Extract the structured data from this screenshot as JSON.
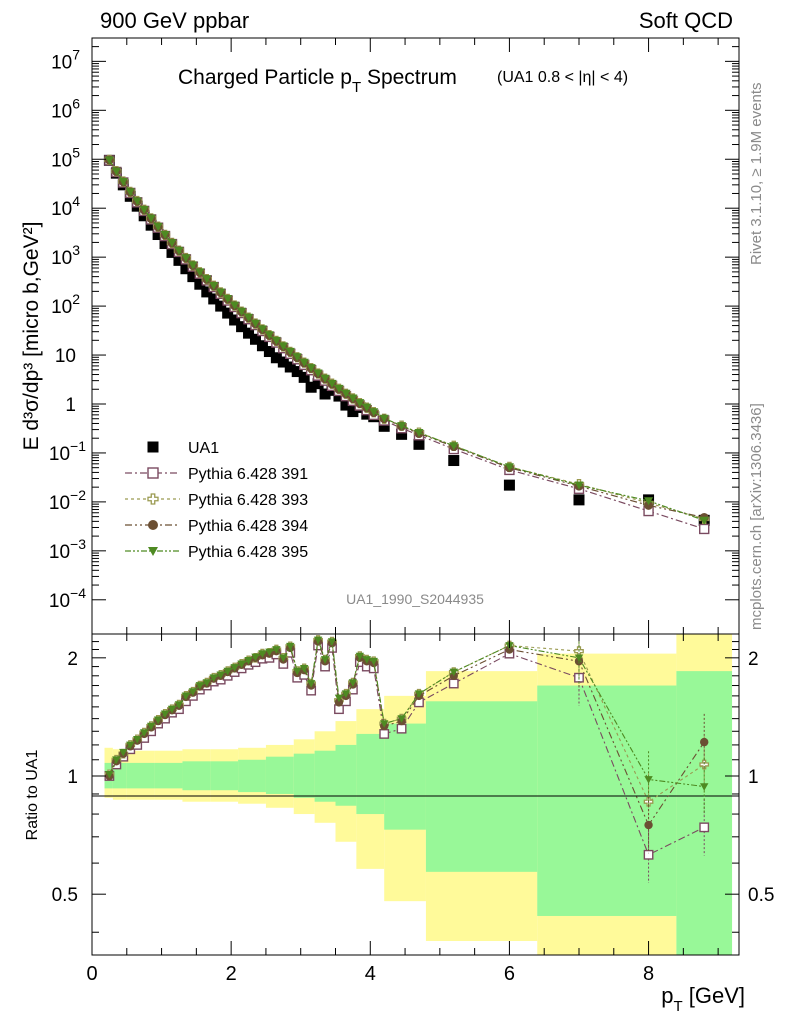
{
  "header": {
    "left": "900 GeV ppbar",
    "right": "Soft QCD"
  },
  "side": {
    "rivet": "Rivet 3.1.10, ≥ 1.9M events",
    "source": "mcplots.cern.ch [arXiv:1306.3436]"
  },
  "chart_data": {
    "type": "scatter",
    "title": {
      "main": "Charged Particle p",
      "main_sub": "T",
      "main_tail": " Spectrum",
      "note": "(UA1 0.8 < |η| < 4)"
    },
    "analysis": "UA1_1990_S2044935",
    "xlabel": {
      "main": "p",
      "sub": "T",
      "tail": " [GeV]"
    },
    "ylabel": "E d³σ/dp³ [micro b,GeV²]",
    "ratio_ylabel": "Ratio to UA1",
    "xlim": [
      0,
      9.3
    ],
    "ylim": [
      2e-05,
      30000000.0
    ],
    "ylog": true,
    "ratio_ylim": [
      0.35,
      2.3
    ],
    "ratio_ylog": true,
    "legend_position": "bottom-left",
    "x_ticks": [
      "0",
      "2",
      "4",
      "6",
      "8"
    ],
    "y_ticks": [
      {
        "v": 10000000.0,
        "base": "10",
        "exp": "7"
      },
      {
        "v": 1000000.0,
        "base": "10",
        "exp": "6"
      },
      {
        "v": 100000.0,
        "base": "10",
        "exp": "5"
      },
      {
        "v": 10000.0,
        "base": "10",
        "exp": "4"
      },
      {
        "v": 1000.0,
        "base": "10",
        "exp": "3"
      },
      {
        "v": 100,
        "base": "10",
        "exp": "2"
      },
      {
        "v": 10,
        "base": "10",
        "exp": ""
      },
      {
        "v": 1,
        "base": "1",
        "exp": ""
      },
      {
        "v": 0.1,
        "base": "10",
        "exp": "−1"
      },
      {
        "v": 0.01,
        "base": "10",
        "exp": "−2"
      },
      {
        "v": 0.001,
        "base": "10",
        "exp": "−3"
      },
      {
        "v": 0.0001,
        "base": "10",
        "exp": "−4"
      }
    ],
    "ratio_ticks": [
      "2",
      "1",
      "0.5"
    ],
    "x": [
      0.25,
      0.35,
      0.45,
      0.55,
      0.65,
      0.75,
      0.85,
      0.95,
      1.05,
      1.15,
      1.25,
      1.35,
      1.45,
      1.55,
      1.65,
      1.75,
      1.85,
      1.95,
      2.05,
      2.15,
      2.25,
      2.35,
      2.45,
      2.55,
      2.65,
      2.75,
      2.85,
      2.95,
      3.05,
      3.15,
      3.25,
      3.35,
      3.45,
      3.55,
      3.65,
      3.75,
      3.85,
      3.95,
      4.05,
      4.2,
      4.45,
      4.7,
      5.2,
      6.0,
      7.0,
      8.0,
      8.8
    ],
    "series": [
      {
        "name": "UA1",
        "marker": "filled-square",
        "color": "#000000",
        "values": [
          95000,
          52000,
          30000,
          17500,
          11000,
          7000,
          4500,
          2900,
          1900,
          1250,
          860,
          580,
          400,
          280,
          195,
          140,
          100,
          72,
          52,
          38,
          28,
          21,
          15.5,
          11.8,
          8.8,
          7.2,
          5.7,
          4.6,
          3.5,
          2.2,
          2.6,
          1.6,
          1.9,
          1.45,
          0.95,
          0.7,
          0.85,
          0.62,
          0.55,
          0.35,
          0.24,
          0.15,
          0.07,
          0.022,
          0.011,
          0.011,
          0.0042
        ]
      },
      {
        "name": "Pythia 6.428 391",
        "marker": "open-square",
        "color": "#7a4a60",
        "values": [
          95000,
          55000,
          33500,
          20500,
          13200,
          8800,
          5900,
          4000,
          2700,
          1850,
          1280,
          900,
          640,
          460,
          335,
          245,
          178,
          130,
          96,
          72,
          54,
          41,
          31,
          23.5,
          18,
          13.8,
          10.6,
          8.2,
          6.3,
          4.9,
          3.8,
          3.0,
          2.35,
          1.85,
          1.45,
          1.16,
          0.93,
          0.75,
          0.6,
          0.46,
          0.32,
          0.23,
          0.12,
          0.045,
          0.0185,
          0.0065,
          0.0028
        ],
        "ratio": [
          1.0,
          1.07,
          1.12,
          1.17,
          1.2,
          1.25,
          1.3,
          1.36,
          1.4,
          1.45,
          1.48,
          1.55,
          1.6,
          1.66,
          1.7,
          1.74,
          1.76,
          1.8,
          1.84,
          1.88,
          1.92,
          1.95,
          1.99,
          2.0,
          2.04,
          1.93,
          2.06,
          1.78,
          1.81,
          1.65,
          2.15,
          1.9,
          2.12,
          1.48,
          1.55,
          1.66,
          1.95,
          1.9,
          1.88,
          1.28,
          1.32,
          1.54,
          1.72,
          2.05,
          1.78,
          0.63,
          0.74
        ]
      },
      {
        "name": "Pythia 6.428 393",
        "marker": "open-cross",
        "color": "#9a9a50",
        "values": [
          97000,
          57000,
          35000,
          21500,
          14000,
          9300,
          6200,
          4200,
          2850,
          1950,
          1360,
          960,
          680,
          490,
          355,
          260,
          190,
          140,
          103,
          77,
          58,
          44,
          33.5,
          25.5,
          19.5,
          15,
          11.6,
          9.0,
          7.0,
          5.4,
          4.2,
          3.3,
          2.6,
          2.05,
          1.62,
          1.3,
          1.04,
          0.84,
          0.68,
          0.5,
          0.36,
          0.26,
          0.14,
          0.052,
          0.023,
          0.0095,
          0.0045
        ],
        "ratio": [
          1.01,
          1.1,
          1.14,
          1.2,
          1.24,
          1.29,
          1.34,
          1.39,
          1.44,
          1.48,
          1.52,
          1.6,
          1.64,
          1.7,
          1.73,
          1.78,
          1.81,
          1.85,
          1.89,
          1.93,
          1.97,
          2.0,
          2.05,
          2.06,
          2.1,
          2.0,
          2.14,
          1.85,
          1.88,
          1.72,
          2.22,
          1.98,
          2.2,
          1.56,
          1.62,
          1.73,
          2.02,
          1.98,
          1.96,
          1.36,
          1.4,
          1.62,
          1.84,
          2.15,
          2.08,
          0.86,
          1.07
        ]
      },
      {
        "name": "Pythia 6.428 394",
        "marker": "filled-circle",
        "color": "#6b4f33",
        "values": [
          96000,
          56500,
          34500,
          21300,
          13800,
          9200,
          6150,
          4150,
          2830,
          1940,
          1350,
          955,
          675,
          487,
          353,
          258,
          189,
          139,
          102,
          76.5,
          57.5,
          43.5,
          33.2,
          25.2,
          19.3,
          14.9,
          11.5,
          8.9,
          6.9,
          5.35,
          4.15,
          3.25,
          2.55,
          2.0,
          1.6,
          1.28,
          1.02,
          0.83,
          0.67,
          0.5,
          0.35,
          0.25,
          0.135,
          0.05,
          0.021,
          0.0085,
          0.0048
        ],
        "ratio": [
          1.0,
          1.09,
          1.14,
          1.19,
          1.23,
          1.28,
          1.33,
          1.38,
          1.43,
          1.47,
          1.51,
          1.59,
          1.63,
          1.69,
          1.72,
          1.77,
          1.8,
          1.84,
          1.88,
          1.92,
          1.96,
          2.0,
          2.03,
          2.05,
          2.08,
          1.98,
          2.12,
          1.83,
          1.86,
          1.7,
          2.2,
          1.96,
          2.18,
          1.54,
          1.6,
          1.71,
          2.0,
          1.96,
          1.94,
          1.34,
          1.38,
          1.6,
          1.8,
          2.1,
          1.96,
          0.75,
          1.22
        ]
      },
      {
        "name": "Pythia 6.428 395",
        "marker": "filled-triangle-down",
        "color": "#4e8a22",
        "values": [
          96500,
          57000,
          35000,
          21600,
          14000,
          9350,
          6250,
          4230,
          2880,
          1970,
          1370,
          970,
          690,
          497,
          360,
          263,
          193,
          142,
          104,
          78,
          59,
          44.5,
          34,
          25.8,
          19.8,
          15.3,
          11.8,
          9.2,
          7.1,
          5.5,
          4.28,
          3.35,
          2.63,
          2.07,
          1.65,
          1.32,
          1.06,
          0.86,
          0.69,
          0.51,
          0.36,
          0.26,
          0.14,
          0.052,
          0.022,
          0.0105,
          0.0042
        ],
        "ratio": [
          1.01,
          1.1,
          1.15,
          1.2,
          1.24,
          1.29,
          1.34,
          1.39,
          1.44,
          1.48,
          1.52,
          1.6,
          1.64,
          1.7,
          1.73,
          1.78,
          1.81,
          1.85,
          1.89,
          1.93,
          1.97,
          2.01,
          2.05,
          2.07,
          2.1,
          2.0,
          2.14,
          1.85,
          1.88,
          1.72,
          2.22,
          1.98,
          2.2,
          1.58,
          1.62,
          1.73,
          2.02,
          1.98,
          1.96,
          1.36,
          1.4,
          1.62,
          1.84,
          2.15,
          2.0,
          0.98,
          0.94
        ]
      }
    ],
    "uncertainty_bins": [
      {
        "x": [
          0.18,
          0.3
        ],
        "inner": [
          0.93,
          1.08
        ],
        "outer": [
          0.88,
          1.18
        ]
      },
      {
        "x": [
          0.3,
          0.5
        ],
        "inner": [
          0.93,
          1.08
        ],
        "outer": [
          0.87,
          1.17
        ]
      },
      {
        "x": [
          0.5,
          0.9
        ],
        "inner": [
          0.93,
          1.08
        ],
        "outer": [
          0.87,
          1.16
        ]
      },
      {
        "x": [
          0.9,
          1.3
        ],
        "inner": [
          0.93,
          1.08
        ],
        "outer": [
          0.87,
          1.16
        ]
      },
      {
        "x": [
          1.3,
          1.7
        ],
        "inner": [
          0.92,
          1.09
        ],
        "outer": [
          0.86,
          1.17
        ]
      },
      {
        "x": [
          1.7,
          2.1
        ],
        "inner": [
          0.92,
          1.09
        ],
        "outer": [
          0.86,
          1.17
        ]
      },
      {
        "x": [
          2.1,
          2.5
        ],
        "inner": [
          0.91,
          1.1
        ],
        "outer": [
          0.85,
          1.18
        ]
      },
      {
        "x": [
          2.5,
          2.9
        ],
        "inner": [
          0.9,
          1.12
        ],
        "outer": [
          0.83,
          1.2
        ]
      },
      {
        "x": [
          2.9,
          3.2
        ],
        "inner": [
          0.88,
          1.14
        ],
        "outer": [
          0.8,
          1.24
        ]
      },
      {
        "x": [
          3.2,
          3.5
        ],
        "inner": [
          0.86,
          1.16
        ],
        "outer": [
          0.76,
          1.3
        ]
      },
      {
        "x": [
          3.5,
          3.8
        ],
        "inner": [
          0.84,
          1.2
        ],
        "outer": [
          0.68,
          1.38
        ]
      },
      {
        "x": [
          3.8,
          4.2
        ],
        "inner": [
          0.8,
          1.28
        ],
        "outer": [
          0.58,
          1.48
        ]
      },
      {
        "x": [
          4.2,
          4.8
        ],
        "inner": [
          0.73,
          1.36
        ],
        "outer": [
          0.48,
          1.6
        ]
      },
      {
        "x": [
          4.8,
          6.4
        ],
        "inner": [
          0.57,
          1.55
        ],
        "outer": [
          0.38,
          1.85
        ]
      },
      {
        "x": [
          6.4,
          8.4
        ],
        "inner": [
          0.44,
          1.7
        ],
        "outer": [
          0.35,
          2.05
        ]
      },
      {
        "x": [
          8.4,
          9.2
        ],
        "inner": [
          0.35,
          1.85
        ],
        "outer": [
          0.35,
          2.3
        ]
      }
    ],
    "band_colors": {
      "inner": "#98f898",
      "outer": "#fffa9a"
    }
  }
}
